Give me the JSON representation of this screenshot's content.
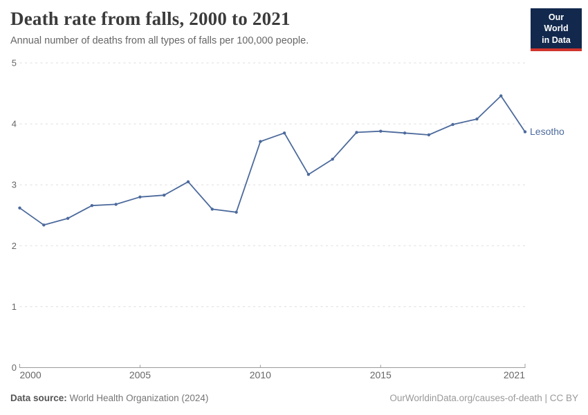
{
  "header": {
    "title": "Death rate from falls, 2000 to 2021",
    "subtitle": "Annual number of deaths from all types of falls per 100,000 people."
  },
  "logo": {
    "line1": "Our World",
    "line2": "in Data",
    "bg_color": "#12294d",
    "accent_color": "#d0342c"
  },
  "chart_data": {
    "type": "line",
    "title": "Death rate from falls, 2000 to 2021",
    "xlabel": "",
    "ylabel": "",
    "x": [
      2000,
      2001,
      2002,
      2003,
      2004,
      2005,
      2006,
      2007,
      2008,
      2009,
      2010,
      2011,
      2012,
      2013,
      2014,
      2015,
      2016,
      2017,
      2018,
      2019,
      2020,
      2021
    ],
    "series": [
      {
        "name": "Lesotho",
        "color": "#4C6A9C",
        "values": [
          2.62,
          2.34,
          2.45,
          2.66,
          2.68,
          2.8,
          2.83,
          3.05,
          2.6,
          2.55,
          3.71,
          3.85,
          3.17,
          3.42,
          3.86,
          3.88,
          3.85,
          3.82,
          3.99,
          4.08,
          4.46,
          3.87
        ]
      }
    ],
    "xlim": [
      2000,
      2021
    ],
    "ylim": [
      0,
      5
    ],
    "xticks": [
      "2000",
      "2005",
      "2010",
      "2015",
      "2021"
    ],
    "xtick_years": [
      2000,
      2005,
      2010,
      2015,
      2021
    ],
    "yticks": [
      "0",
      "1",
      "2",
      "3",
      "4",
      "5"
    ],
    "ytick_values": [
      0,
      1,
      2,
      3,
      4,
      5
    ],
    "grid": "horizontal-dashed",
    "legend": "line-end-label",
    "colors": {
      "gridline": "#dddddd",
      "axis": "#9b9b9b",
      "tick_label": "#666666"
    }
  },
  "footer": {
    "source_label": "Data source:",
    "source_value": " World Health Organization (2024)",
    "attribution": "OurWorldinData.org/causes-of-death | CC BY"
  }
}
